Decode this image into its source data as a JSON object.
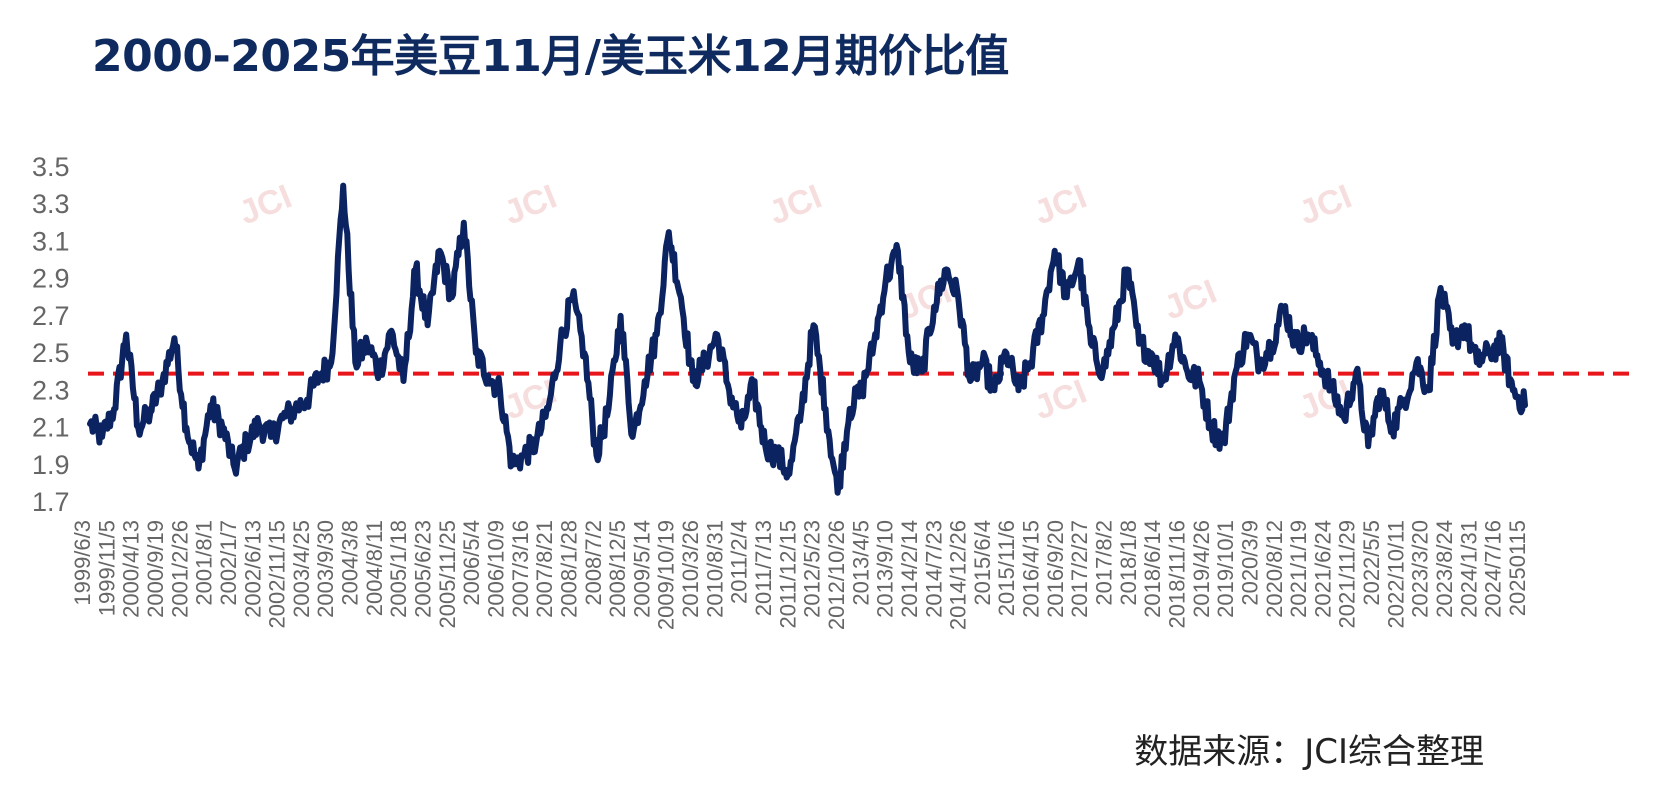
{
  "title": "2000-2025年美豆11月/美玉米12月期价比值",
  "source": "数据来源：JCI综合整理",
  "watermark": "JCI",
  "colors": {
    "line": "#0b2461",
    "reference": "#e8151b",
    "title": "#0e2a5e"
  },
  "chart_data": {
    "type": "line",
    "title": "2000-2025年美豆11月/美玉米12月期价比值",
    "ylim": [
      1.7,
      3.5
    ],
    "yticks": [
      1.7,
      1.9,
      2.1,
      2.3,
      2.5,
      2.7,
      2.9,
      3.1,
      3.3,
      3.5
    ],
    "ytick_labels": [
      "1.7",
      "1.9",
      "2.1",
      "2.3",
      "2.5",
      "2.7",
      "2.9",
      "3.1",
      "3.3",
      "3.5"
    ],
    "x_tick_labels": [
      "1999/6/3",
      "1999/11/5",
      "2000/4/13",
      "2000/9/19",
      "2001/2/26",
      "2001/8/1",
      "2002/1/7",
      "2002/6/13",
      "2002/11/15",
      "2003/4/25",
      "2003/9/30",
      "2004/3/8",
      "2004/8/11",
      "2005/1/18",
      "2005/6/23",
      "2005/11/25",
      "2006/5/4",
      "2006/10/9",
      "2007/3/16",
      "2007/8/21",
      "2008/1/28",
      "2008/7/2",
      "2008/12/5",
      "2009/5/14",
      "2009/10/19",
      "2010/3/26",
      "2010/8/31",
      "2011/2/4",
      "2011/7/13",
      "2011/12/15",
      "2012/5/23",
      "2012/10/26",
      "2013/4/5",
      "2013/9/10",
      "2014/2/14",
      "2014/7/23",
      "2014/12/26",
      "2015/6/4",
      "2015/11/6",
      "2016/4/15",
      "2016/9/20",
      "2017/2/27",
      "2017/8/2",
      "2018/1/8",
      "2018/6/14",
      "2018/11/16",
      "2019/4/26",
      "2019/10/1",
      "2020/3/9",
      "2020/8/12",
      "2021/1/19",
      "2021/6/24",
      "2021/11/29",
      "2022/5/5",
      "2022/10/11",
      "2023/3/20",
      "2023/8/24",
      "2024/1/31",
      "2024/7/16",
      "20250115"
    ],
    "reference_line": {
      "value": 2.39,
      "style": "dashed"
    },
    "series": [
      {
        "x": [
          "1999/6/3",
          "1999/8/19",
          "1999/11/5",
          "2000/1/20",
          "2000/4/13",
          "2000/6/29",
          "2000/9/19",
          "2000/12/5",
          "2001/2/26",
          "2001/5/14",
          "2001/8/1",
          "2001/10/17",
          "2002/1/7",
          "2002/3/22",
          "2002/6/13",
          "2002/8/30",
          "2002/11/15",
          "2003/2/4",
          "2003/4/25",
          "2003/7/10",
          "2003/9/30",
          "2003/12/15",
          "2004/3/8",
          "2004/5/21",
          "2004/8/11",
          "2004/10/27",
          "2005/1/18",
          "2005/4/5",
          "2005/6/23",
          "2005/9/9",
          "2005/11/25",
          "2006/2/14",
          "2006/5/4",
          "2006/7/20",
          "2006/10/9",
          "2006/12/22",
          "2007/3/16",
          "2007/6/1",
          "2007/8/21",
          "2007/11/6",
          "2008/1/28",
          "2008/4/14",
          "2008/7/2",
          "2008/9/18",
          "2008/12/5",
          "2009/2/27",
          "2009/5/14",
          "2009/7/31",
          "2009/10/19",
          "2010/1/6",
          "2010/3/26",
          "2010/6/11",
          "2010/8/31",
          "2010/11/16",
          "2011/2/4",
          "2011/4/21",
          "2011/7/13",
          "2011/9/28",
          "2011/12/15",
          "2012/3/6",
          "2012/5/23",
          "2012/8/8",
          "2012/10/26",
          "2013/1/16",
          "2013/4/5",
          "2013/6/21",
          "2013/9/10",
          "2013/11/25",
          "2014/2/14",
          "2014/5/5",
          "2014/7/23",
          "2014/10/7",
          "2014/12/26",
          "2015/3/17",
          "2015/6/4",
          "2015/8/20",
          "2015/11/6",
          "2016/1/27",
          "2016/4/15",
          "2016/7/1",
          "2016/9/20",
          "2016/12/6",
          "2017/2/27",
          "2017/5/12",
          "2017/8/2",
          "2017/10/18",
          "2018/1/8",
          "2018/3/27",
          "2018/6/14",
          "2018/8/30",
          "2018/11/16",
          "2019/2/7",
          "2019/4/26",
          "2019/7/12",
          "2019/10/1",
          "2019/12/16",
          "2020/3/9",
          "2020/5/22",
          "2020/8/12",
          "2020/10/28",
          "2021/1/19",
          "2021/4/7",
          "2021/6/24",
          "2021/9/9",
          "2021/11/29",
          "2022/2/16",
          "2022/5/5",
          "2022/7/21",
          "2022/10/11",
          "2022/12/28",
          "2023/3/20",
          "2023/6/5",
          "2023/8/24",
          "2023/11/8",
          "2024/1/31",
          "2024/4/18",
          "2024/7/16",
          "2024/10/2",
          "20250115",
          "2025/3/31"
        ],
        "values": [
          2.12,
          2.05,
          2.2,
          2.6,
          2.1,
          2.18,
          2.35,
          2.58,
          2.1,
          1.88,
          2.22,
          2.1,
          1.88,
          2.02,
          2.12,
          2.05,
          2.15,
          2.2,
          2.25,
          2.38,
          2.45,
          3.4,
          2.45,
          2.55,
          2.4,
          2.62,
          2.35,
          2.95,
          2.65,
          3.05,
          2.8,
          3.2,
          2.5,
          2.38,
          2.3,
          1.9,
          1.95,
          2.02,
          2.2,
          2.55,
          2.8,
          2.5,
          1.95,
          2.2,
          2.7,
          2.05,
          2.35,
          2.6,
          3.15,
          2.8,
          2.35,
          2.45,
          2.6,
          2.3,
          2.1,
          2.32,
          2.0,
          1.95,
          1.85,
          2.2,
          2.65,
          2.2,
          1.75,
          2.2,
          2.3,
          2.55,
          2.9,
          3.05,
          2.45,
          2.4,
          2.75,
          2.95,
          2.8,
          2.35,
          2.45,
          2.3,
          2.5,
          2.3,
          2.45,
          2.7,
          3.05,
          2.8,
          3.0,
          2.55,
          2.4,
          2.65,
          2.95,
          2.55,
          2.5,
          2.35,
          2.6,
          2.4,
          2.35,
          2.1,
          2.02,
          2.4,
          2.6,
          2.45,
          2.55,
          2.75,
          2.55,
          2.6,
          2.45,
          2.3,
          2.15,
          2.4,
          2.0,
          2.3,
          2.1,
          2.25,
          2.45,
          2.3,
          2.85,
          2.55,
          2.65,
          2.45,
          2.5,
          2.55,
          2.3,
          2.22
        ]
      }
    ]
  }
}
